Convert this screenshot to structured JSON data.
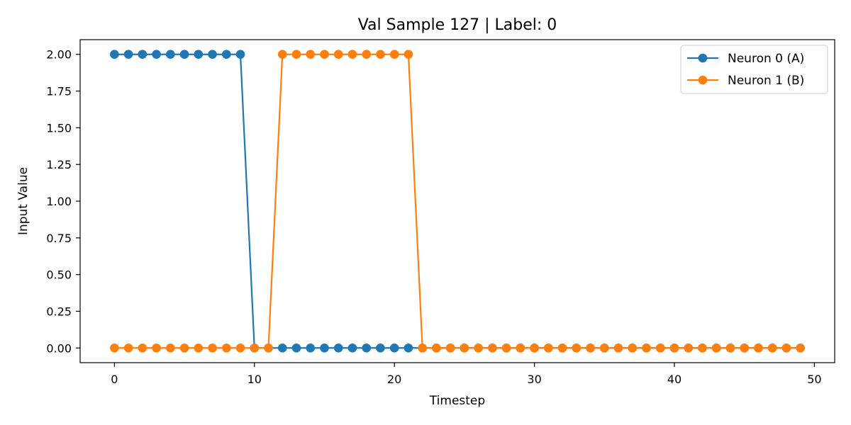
{
  "chart_data": {
    "type": "line",
    "title": "Val Sample 127 | Label: 0",
    "xlabel": "Timestep",
    "ylabel": "Input Value",
    "xlim": [
      -2.45,
      51.45
    ],
    "ylim": [
      -0.1,
      2.1
    ],
    "xticks": [
      0,
      10,
      20,
      30,
      40,
      50
    ],
    "xtick_labels": [
      "0",
      "10",
      "20",
      "30",
      "40",
      "50"
    ],
    "yticks": [
      0,
      0.25,
      0.5,
      0.75,
      1,
      1.25,
      1.5,
      1.75,
      2
    ],
    "ytick_labels": [
      "0.00",
      "0.25",
      "0.50",
      "0.75",
      "1.00",
      "1.25",
      "1.50",
      "1.75",
      "2.00"
    ],
    "grid": false,
    "legend_position": "top-right",
    "x": [
      0,
      1,
      2,
      3,
      4,
      5,
      6,
      7,
      8,
      9,
      10,
      11,
      12,
      13,
      14,
      15,
      16,
      17,
      18,
      19,
      20,
      21,
      22,
      23,
      24,
      25,
      26,
      27,
      28,
      29,
      30,
      31,
      32,
      33,
      34,
      35,
      36,
      37,
      38,
      39,
      40,
      41,
      42,
      43,
      44,
      45,
      46,
      47,
      48,
      49
    ],
    "series": [
      {
        "name": "Neuron 0 (A)",
        "color": "#1f77b4",
        "values": [
          2,
          2,
          2,
          2,
          2,
          2,
          2,
          2,
          2,
          2,
          0,
          0,
          0,
          0,
          0,
          0,
          0,
          0,
          0,
          0,
          0,
          0,
          0,
          0,
          0,
          0,
          0,
          0,
          0,
          0,
          0,
          0,
          0,
          0,
          0,
          0,
          0,
          0,
          0,
          0,
          0,
          0,
          0,
          0,
          0,
          0,
          0,
          0,
          0,
          0
        ]
      },
      {
        "name": "Neuron 1 (B)",
        "color": "#ff7f0e",
        "values": [
          0,
          0,
          0,
          0,
          0,
          0,
          0,
          0,
          0,
          0,
          0,
          0,
          2,
          2,
          2,
          2,
          2,
          2,
          2,
          2,
          2,
          2,
          0,
          0,
          0,
          0,
          0,
          0,
          0,
          0,
          0,
          0,
          0,
          0,
          0,
          0,
          0,
          0,
          0,
          0,
          0,
          0,
          0,
          0,
          0,
          0,
          0,
          0,
          0,
          0
        ]
      }
    ]
  }
}
